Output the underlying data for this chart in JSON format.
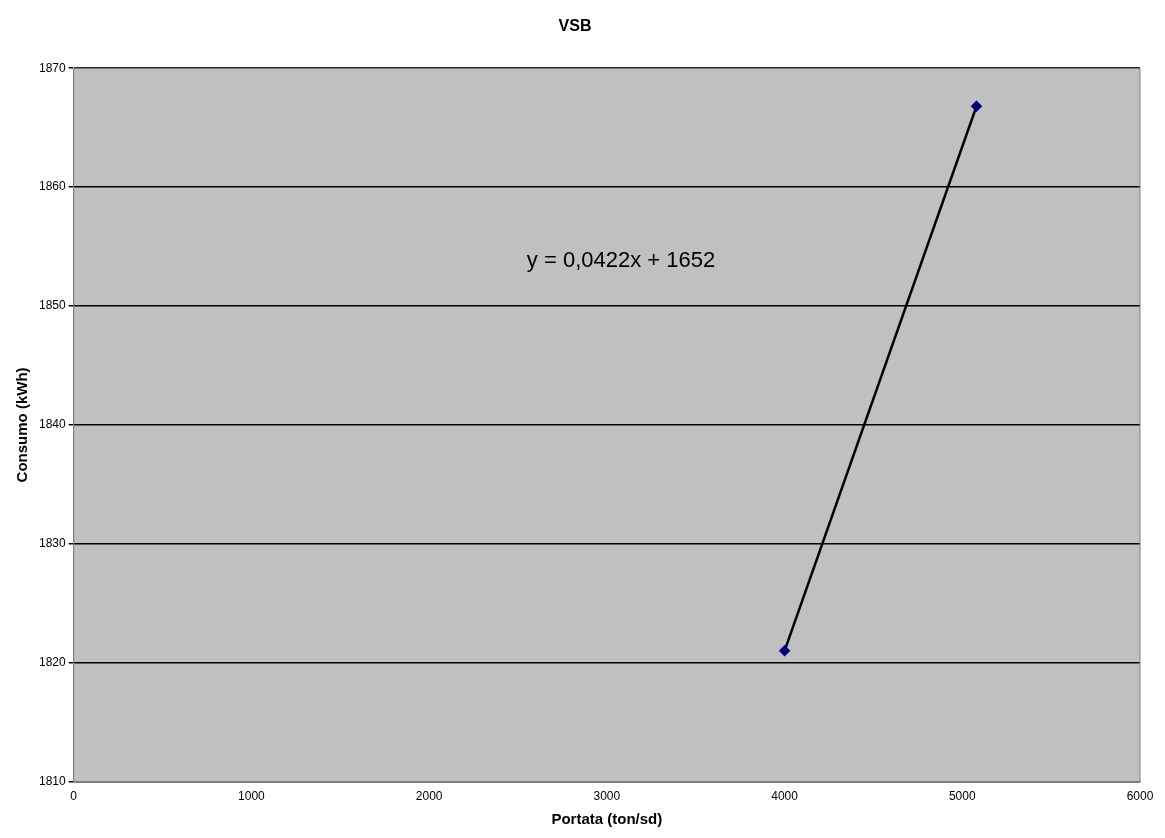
{
  "chart_data": {
    "type": "line",
    "title": "VSB",
    "xlabel": "Portata (ton/sd)",
    "ylabel": "Consumo (kWh)",
    "x": [
      4000,
      5080
    ],
    "series": [
      {
        "color": "#000000",
        "values": [
          1821,
          1866.8
        ]
      }
    ],
    "xlim": [
      0,
      6000
    ],
    "xticks": [
      0,
      1000,
      2000,
      3000,
      4000,
      5000,
      6000
    ],
    "ylim": [
      1810,
      1870
    ],
    "yticks": [
      1810,
      1820,
      1830,
      1840,
      1850,
      1860,
      1870
    ],
    "grid": "y",
    "legend": false,
    "marker": "diamond",
    "line_style": "solid",
    "annotations": [
      "y = 0,0422x + 1652"
    ]
  }
}
